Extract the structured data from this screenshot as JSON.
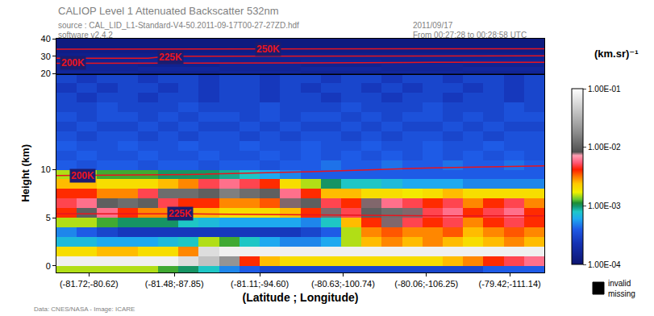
{
  "chart_data": [
    {
      "type": "heatmap",
      "title": "CALIOP Level 1 Attenuated Backscatter 532nm",
      "subtitle": [
        "source : CAL_LID_L1-Standard-V4-50.2011-09-17T00-27-27ZD.hdf",
        "software v2.4.2"
      ],
      "annotations": [
        "2011/09/17",
        "From 00:27:28 to 00:28:58 UTC",
        "Data: CNES/NASA - Image: ICARE"
      ],
      "xlabel": "(Latitude ; Longitude)",
      "ylabel": "Height (km)",
      "xlim": [
        -0.5,
        23.5
      ],
      "xticks": [
        {
          "value": 1.1,
          "label": "(-81.72;-80.62)"
        },
        {
          "value": 5.3,
          "label": "(-81.48;-87.85)"
        },
        {
          "value": 9.5,
          "label": "(-81.11;-94.60)"
        },
        {
          "value": 13.6,
          "label": "(-80.63;-100.74)"
        },
        {
          "value": 17.7,
          "label": "(-80.06;-106.25)"
        },
        {
          "value": 21.8,
          "label": "(-79.42;-111.14)"
        }
      ],
      "ylim": [
        -0.7,
        20
      ],
      "yticks": [
        0,
        5,
        10
      ],
      "grid": false,
      "colorbar": {
        "title": "(km.sr)⁻¹",
        "log": true,
        "range": [
          0.0001,
          0.1
        ],
        "ticks": [
          {
            "value": 0.0001,
            "label": "1.00E-04"
          },
          {
            "value": 0.001,
            "label": "1.00E-03"
          },
          {
            "value": 0.01,
            "label": "1.00E-02"
          },
          {
            "value": 0.1,
            "label": "1.00E-01"
          }
        ],
        "missing_labels": [
          "invalid",
          "missing"
        ]
      },
      "lines": [
        {
          "label": "200K",
          "label_x": 0.8,
          "label_y": 9.4,
          "x": [
            -0.5,
            6,
            12,
            18,
            23.5
          ],
          "y": [
            9.4,
            9.5,
            9.8,
            10.2,
            10.4
          ]
        },
        {
          "label": "225K",
          "label_x": 5.6,
          "label_y": 5.4,
          "x": [
            -0.5,
            6,
            12,
            18,
            23.5
          ],
          "y": [
            5.4,
            5.4,
            5.3,
            5.2,
            5.2
          ]
        }
      ],
      "x": [
        0,
        1,
        2,
        3,
        4,
        5,
        6,
        7,
        8,
        9,
        10,
        11,
        12,
        13,
        14,
        15,
        16,
        17,
        18,
        19,
        20,
        21,
        22,
        23
      ],
      "y": [
        -0.5,
        0.5,
        1.5,
        2.5,
        3.5,
        4.5,
        5.5,
        6.5,
        7.5,
        8.5,
        9.5,
        10.5,
        11.5,
        12.5,
        13.5,
        14.5,
        15.5,
        16.5,
        17.5,
        18.5,
        19.5
      ],
      "cells": [
        [
          0.0015,
          0.0015,
          0.0015,
          0.0015,
          0.0015,
          0.0012,
          0.001,
          0.0008,
          0.0005,
          0.0004,
          0.0003,
          0.0003,
          0.0003,
          0.0003,
          0.0003,
          0.0003,
          0.0003,
          0.0003,
          0.0003,
          0.0003,
          0.0003,
          0.0004,
          0.0004,
          0.0004
        ],
        [
          0.08,
          0.08,
          0.08,
          0.08,
          0.08,
          0.08,
          0.06,
          0.04,
          0.02,
          0.004,
          0.0025,
          0.002,
          0.002,
          0.002,
          0.002,
          0.002,
          0.002,
          0.002,
          0.002,
          0.0025,
          0.003,
          0.004,
          0.005,
          0.006
        ],
        [
          0.002,
          0.002,
          0.0025,
          0.0025,
          0.002,
          0.002,
          0.003,
          0.06,
          0.08,
          0.08,
          0.08,
          0.08,
          0.08,
          0.08,
          0.08,
          0.08,
          0.08,
          0.08,
          0.08,
          0.08,
          0.08,
          0.08,
          0.08,
          0.08
        ],
        [
          0.0007,
          0.0007,
          0.0006,
          0.0006,
          0.0006,
          0.0007,
          0.0008,
          0.0015,
          0.0012,
          0.0008,
          0.0006,
          0.0005,
          0.0005,
          0.0006,
          0.0015,
          0.0025,
          0.003,
          0.0025,
          0.003,
          0.0025,
          0.002,
          0.0025,
          0.003,
          0.0025
        ],
        [
          0.0005,
          0.0004,
          0.0003,
          0.00025,
          0.00025,
          0.00025,
          0.00025,
          0.00025,
          0.00025,
          0.00025,
          0.00025,
          0.00025,
          0.0003,
          0.0004,
          0.0015,
          0.003,
          0.0035,
          0.003,
          0.003,
          0.0035,
          0.0025,
          0.003,
          0.0035,
          0.003
        ],
        [
          0.0015,
          0.0015,
          0.0012,
          0.001,
          0.001,
          0.001,
          0.0008,
          0.0007,
          0.0006,
          0.0006,
          0.0006,
          0.0006,
          0.0005,
          0.0008,
          0.0025,
          0.004,
          0.008,
          0.005,
          0.004,
          0.005,
          0.003,
          0.004,
          0.005,
          0.004
        ],
        [
          0.004,
          0.01,
          0.006,
          0.004,
          0.003,
          0.003,
          0.0025,
          0.0025,
          0.002,
          0.002,
          0.002,
          0.0025,
          0.004,
          0.008,
          0.005,
          0.01,
          0.012,
          0.008,
          0.005,
          0.006,
          0.004,
          0.005,
          0.006,
          0.004
        ],
        [
          0.005,
          0.006,
          0.01,
          0.012,
          0.01,
          0.005,
          0.004,
          0.004,
          0.003,
          0.003,
          0.0035,
          0.008,
          0.01,
          0.005,
          0.004,
          0.008,
          0.006,
          0.005,
          0.004,
          0.005,
          0.003,
          0.004,
          0.005,
          0.003
        ],
        [
          0.004,
          0.004,
          0.003,
          0.003,
          0.005,
          0.012,
          0.012,
          0.01,
          0.015,
          0.012,
          0.01,
          0.006,
          0.004,
          0.0025,
          0.0025,
          0.002,
          0.002,
          0.0018,
          0.002,
          0.0025,
          0.002,
          0.002,
          0.002,
          0.002
        ],
        [
          0.0025,
          0.0025,
          0.002,
          0.002,
          0.002,
          0.0025,
          0.003,
          0.005,
          0.006,
          0.005,
          0.004,
          0.002,
          0.0015,
          0.001,
          0.0008,
          0.0008,
          0.0007,
          0.0006,
          0.0006,
          0.0006,
          0.0005,
          0.0005,
          0.0005,
          0.0005
        ],
        [
          0.0015,
          0.0015,
          0.0012,
          0.0012,
          0.0012,
          0.001,
          0.001,
          0.001,
          0.0009,
          0.0008,
          0.0006,
          0.0005,
          0.0004,
          0.0004,
          0.0004,
          0.0004,
          0.0004,
          0.0004,
          0.0004,
          0.0004,
          0.0004,
          0.0004,
          0.0004,
          0.0004
        ],
        [
          0.0004,
          0.00035,
          0.0004,
          0.0004,
          0.00035,
          0.0004,
          0.0004,
          0.00035,
          0.0004,
          0.0004,
          0.00035,
          0.0004,
          0.0004,
          0.00045,
          0.0004,
          0.0004,
          0.00045,
          0.0004,
          0.0004,
          0.00045,
          0.0004,
          0.0004,
          0.00045,
          0.0004
        ],
        [
          0.00035,
          0.0004,
          0.00035,
          0.00035,
          0.0004,
          0.00035,
          0.00035,
          0.0004,
          0.00035,
          0.00035,
          0.0004,
          0.00035,
          0.0004,
          0.00035,
          0.0004,
          0.00035,
          0.0004,
          0.00035,
          0.0004,
          0.00035,
          0.0004,
          0.00035,
          0.0004,
          0.00035
        ],
        [
          0.0004,
          0.00035,
          0.00035,
          0.0004,
          0.00035,
          0.00035,
          0.0004,
          0.00035,
          0.00035,
          0.0004,
          0.00035,
          0.00035,
          0.0004,
          0.00035,
          0.00035,
          0.0004,
          0.00035,
          0.00035,
          0.0004,
          0.00035,
          0.00035,
          0.0004,
          0.00035,
          0.00035
        ],
        [
          0.00035,
          0.0003,
          0.00035,
          0.00035,
          0.0003,
          0.00035,
          0.0003,
          0.00035,
          0.00035,
          0.0003,
          0.00035,
          0.0003,
          0.00035,
          0.00035,
          0.0003,
          0.00035,
          0.0003,
          0.00035,
          0.00035,
          0.0003,
          0.00035,
          0.0003,
          0.00035,
          0.00035
        ],
        [
          0.0003,
          0.00035,
          0.0003,
          0.0003,
          0.00035,
          0.0003,
          0.00035,
          0.0003,
          0.0003,
          0.00035,
          0.0003,
          0.00035,
          0.0003,
          0.0003,
          0.00035,
          0.0003,
          0.00035,
          0.0003,
          0.0003,
          0.00035,
          0.0003,
          0.00035,
          0.0003,
          0.0003
        ],
        [
          0.00035,
          0.0003,
          0.00035,
          0.00035,
          0.0003,
          0.00035,
          0.0003,
          0.00035,
          0.00035,
          0.0003,
          0.00035,
          0.0003,
          0.00035,
          0.00035,
          0.0003,
          0.00035,
          0.0003,
          0.00035,
          0.00035,
          0.0003,
          0.00035,
          0.0003,
          0.00035,
          0.00035
        ],
        [
          0.0003,
          0.0003,
          0.00035,
          0.0003,
          0.0003,
          0.0003,
          0.00035,
          0.0003,
          0.0003,
          0.0003,
          0.00035,
          0.0003,
          0.0003,
          0.0003,
          0.00035,
          0.0003,
          0.0003,
          0.0003,
          0.00035,
          0.0003,
          0.0003,
          0.0003,
          0.00035,
          0.0003
        ],
        [
          0.0003,
          0.00025,
          0.0003,
          0.0003,
          0.00025,
          0.0003,
          0.0003,
          0.00025,
          0.0003,
          0.0003,
          0.00025,
          0.0003,
          0.0003,
          0.00025,
          0.0003,
          0.0003,
          0.00025,
          0.0003,
          0.0003,
          0.00025,
          0.0003,
          0.0003,
          0.00025,
          0.0003
        ],
        [
          0.00025,
          0.0003,
          0.00025,
          0.0003,
          0.0003,
          0.00025,
          0.0003,
          0.00025,
          0.0003,
          0.0003,
          0.00025,
          0.0003,
          0.00025,
          0.0003,
          0.0003,
          0.00025,
          0.0003,
          0.00025,
          0.0003,
          0.0003,
          0.00025,
          0.0003,
          0.00025,
          0.0003
        ],
        [
          0.0003,
          0.00025,
          0.0003,
          0.0003,
          0.00025,
          0.0003,
          0.0003,
          0.00025,
          0.0003,
          0.0003,
          0.00025,
          0.0003,
          0.0003,
          0.00025,
          0.0003,
          0.0003,
          0.00025,
          0.0003,
          0.0003,
          0.00025,
          0.0003,
          0.0003,
          0.00025,
          0.0003
        ]
      ]
    },
    {
      "type": "heatmap",
      "xlim": [
        -0.5,
        23.5
      ],
      "ylim": [
        20,
        40
      ],
      "yticks": [
        20,
        30,
        40
      ],
      "grid": false,
      "tick_labels": "y",
      "lines": [
        {
          "label": "200K",
          "label_x": 0.3,
          "label_y": 26,
          "x": [
            -0.5,
            6,
            12,
            18,
            23.5
          ],
          "y": [
            26,
            26,
            26.2,
            26.5,
            26.5
          ]
        },
        {
          "label": "225K",
          "label_x": 5.1,
          "label_y": 29.5,
          "x": [
            -0.5,
            4,
            5,
            23.5
          ],
          "y": [
            28.8,
            28.8,
            30,
            30.2
          ]
        },
        {
          "label": "250K",
          "label_x": 9.9,
          "label_y": 34,
          "x": [
            -0.5,
            23.5
          ],
          "y": [
            34,
            34.3
          ]
        }
      ],
      "x": [
        1.5,
        5.5,
        9.5,
        13.5,
        17.5,
        21.5
      ],
      "y": [
        21,
        23,
        25,
        27,
        29,
        31,
        33,
        35,
        37,
        39
      ],
      "cells": [
        [
          0.00017,
          0.00016,
          0.00017,
          0.00016,
          0.00017,
          0.00016
        ],
        [
          0.00016,
          0.00017,
          0.00016,
          0.00017,
          0.00016,
          0.00017
        ],
        [
          0.00016,
          0.00015,
          0.00016,
          0.00015,
          0.00016,
          0.00015
        ],
        [
          0.00015,
          0.00016,
          0.00015,
          0.00016,
          0.00015,
          0.00016
        ],
        [
          0.00015,
          0.00015,
          0.00015,
          0.00015,
          0.00015,
          0.00015
        ],
        [
          0.00014,
          0.00014,
          0.00014,
          0.00014,
          0.00014,
          0.00014
        ],
        [
          0.00013,
          0.00013,
          0.00013,
          0.00013,
          0.00013,
          0.00013
        ],
        [
          0.00012,
          0.00012,
          0.00012,
          0.00012,
          0.00012,
          0.00012
        ],
        [
          0.00012,
          0.00012,
          0.00012,
          0.00012,
          0.00012,
          0.00012
        ],
        [
          0.00012,
          0.00012,
          0.00012,
          0.00012,
          0.00012,
          0.00012
        ]
      ]
    }
  ]
}
